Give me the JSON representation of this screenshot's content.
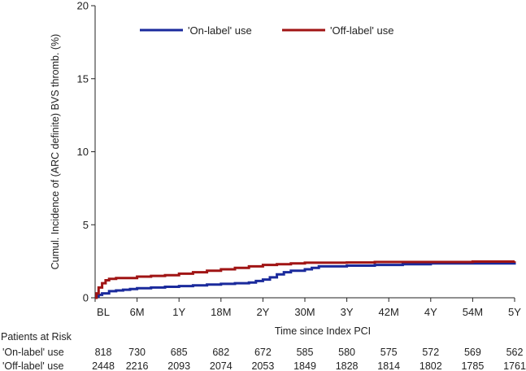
{
  "chart_data": {
    "type": "line",
    "title": "",
    "xlabel": "Time since Index PCI",
    "ylabel": "Cumul. Incidence of (ARC definite) BVS thromb. (%)",
    "ylim": [
      0,
      20
    ],
    "yticks": [
      0,
      5,
      10,
      15,
      20
    ],
    "xlim": [
      0,
      60
    ],
    "xticks": [
      {
        "value": 0,
        "label": "BL"
      },
      {
        "value": 6,
        "label": "6M"
      },
      {
        "value": 12,
        "label": "1Y"
      },
      {
        "value": 18,
        "label": "18M"
      },
      {
        "value": 24,
        "label": "2Y"
      },
      {
        "value": 30,
        "label": "30M"
      },
      {
        "value": 36,
        "label": "3Y"
      },
      {
        "value": 42,
        "label": "42M"
      },
      {
        "value": 48,
        "label": "4Y"
      },
      {
        "value": 54,
        "label": "54M"
      },
      {
        "value": 60,
        "label": "5Y"
      }
    ],
    "grid": false,
    "legend_position": "top",
    "series": [
      {
        "name": "'On-label' use",
        "color": "#1a2a9c",
        "x": [
          0,
          0.2,
          0.5,
          1,
          2,
          3,
          4,
          5,
          6,
          8,
          10,
          12,
          14,
          16,
          18,
          20,
          22,
          23,
          24,
          25,
          26,
          27,
          28,
          30,
          31,
          32,
          36,
          40,
          44,
          48,
          54,
          60
        ],
        "y": [
          0,
          0.1,
          0.2,
          0.3,
          0.45,
          0.5,
          0.55,
          0.6,
          0.65,
          0.7,
          0.75,
          0.8,
          0.85,
          0.9,
          0.95,
          1.0,
          1.05,
          1.15,
          1.25,
          1.4,
          1.6,
          1.75,
          1.85,
          1.95,
          2.05,
          2.15,
          2.2,
          2.25,
          2.3,
          2.35,
          2.35,
          2.4
        ]
      },
      {
        "name": "'Off-label' use",
        "color": "#a01414",
        "x": [
          0,
          0.2,
          0.5,
          1,
          1.5,
          2,
          3,
          6,
          8,
          10,
          12,
          14,
          16,
          18,
          20,
          22,
          24,
          26,
          28,
          30,
          32,
          36,
          40,
          44,
          48,
          54,
          60
        ],
        "y": [
          0,
          0.3,
          0.7,
          1.0,
          1.2,
          1.3,
          1.35,
          1.45,
          1.5,
          1.55,
          1.65,
          1.75,
          1.85,
          1.95,
          2.05,
          2.15,
          2.25,
          2.3,
          2.35,
          2.4,
          2.4,
          2.42,
          2.45,
          2.45,
          2.45,
          2.48,
          2.5
        ]
      }
    ],
    "risk_table": {
      "title": "Patients at Risk",
      "rows": [
        {
          "label": "'On-label' use",
          "values": [
            "818",
            "730",
            "685",
            "682",
            "672",
            "585",
            "580",
            "575",
            "572",
            "569",
            "562"
          ]
        },
        {
          "label": "'Off-label' use",
          "values": [
            "2448",
            "2216",
            "2093",
            "2074",
            "2053",
            "1849",
            "1828",
            "1814",
            "1802",
            "1785",
            "1761"
          ]
        }
      ]
    }
  }
}
